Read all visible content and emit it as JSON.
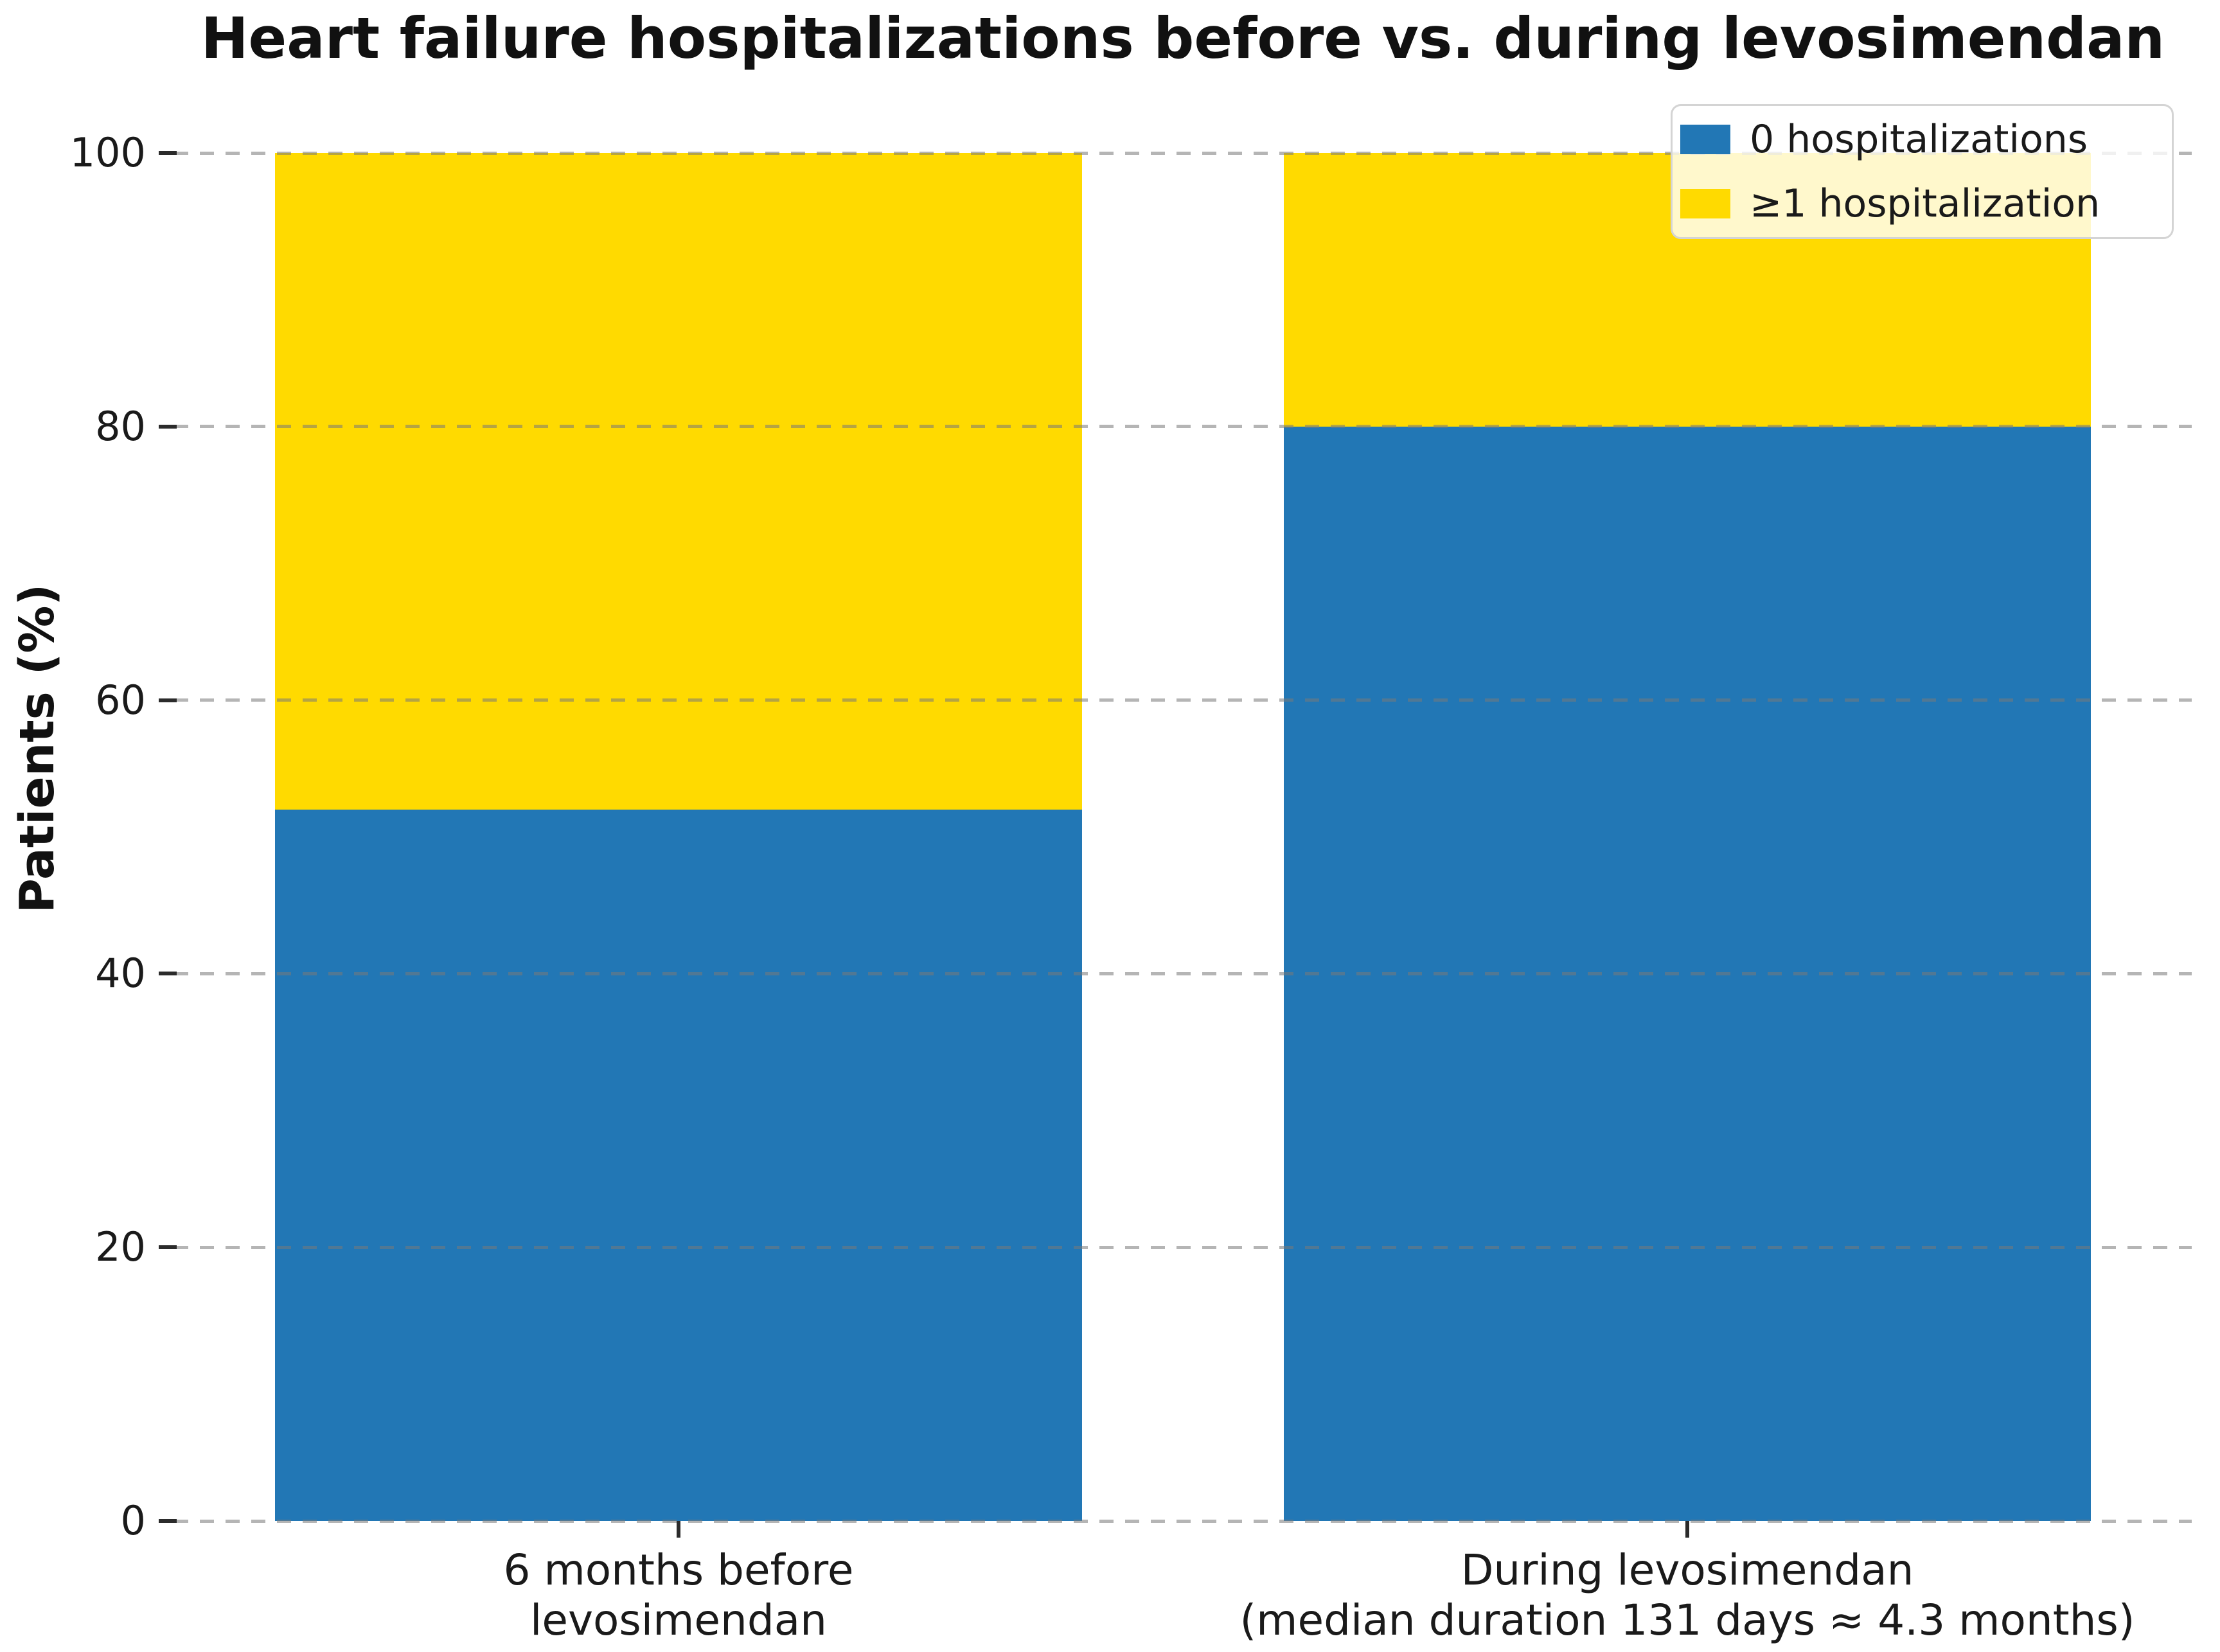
{
  "title": "Heart failure hospitalizations before vs. during levosimendan",
  "y_axis": {
    "label": "Patients (%)",
    "tick_labels": [
      "0",
      "20",
      "40",
      "60",
      "80",
      "100"
    ]
  },
  "legend": {
    "items": [
      {
        "label": "0 hospitalizations",
        "color": "#2277b5"
      },
      {
        "label": "≥1 hospitalization",
        "color": "#ffda00"
      }
    ]
  },
  "chart_data": {
    "type": "bar",
    "stacked": true,
    "title": "Heart failure hospitalizations before vs. during levosimendan",
    "xlabel": "",
    "ylabel": "Patients (%)",
    "categories": [
      "6 months before\nlevosimendan",
      "During levosimendan\n(median duration 131 days ≈ 4.3 months)"
    ],
    "series": [
      {
        "name": "0 hospitalizations",
        "color": "#2277b5",
        "values": [
          52,
          80
        ]
      },
      {
        "name": "≥1 hospitalization",
        "color": "#ffda00",
        "values": [
          48,
          20
        ]
      }
    ],
    "ylim": [
      0,
      100
    ],
    "yticks": [
      0,
      20,
      40,
      60,
      80,
      100
    ],
    "grid": true,
    "grid_style": "dashed",
    "legend_position": "upper right",
    "bar_width_fraction": 0.4
  },
  "colors": {
    "background": "#ffffff",
    "blue": "#2277b5",
    "yellow": "#ffda00",
    "grid": "#b0b0b0",
    "text": "#1a1a1a"
  }
}
